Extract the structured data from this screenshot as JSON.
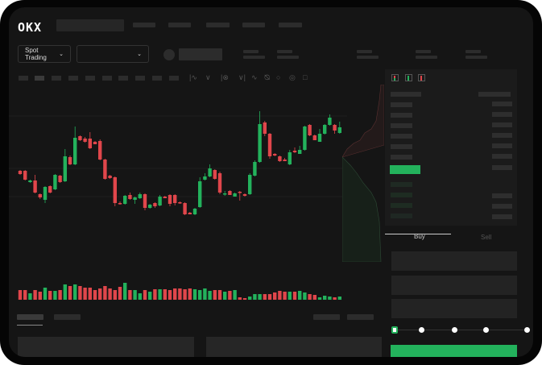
{
  "header": {
    "logo": "OKX"
  },
  "toolbar": {
    "market_select": "Spot Trading",
    "pair_select": ""
  },
  "order_entry": {
    "buy_tab": "Buy",
    "sell_tab": "Sell",
    "leverage_steps": 5,
    "leverage_selected": 0
  },
  "colors": {
    "up": "#23b25c",
    "down": "#e0464b",
    "background": "#151515",
    "panel": "#1b1b1b"
  },
  "icons": [
    "chevron-down-icon",
    "indicator-icon",
    "draw-line-icon",
    "ruler-icon",
    "camera-icon",
    "settings-icon",
    "fullscreen-icon",
    "orderbook-both-icon",
    "orderbook-bids-icon",
    "orderbook-asks-icon"
  ],
  "chart_data": {
    "type": "candlestick",
    "ohlc": [
      [
        67,
        68,
        62,
        63
      ],
      [
        67,
        68,
        55,
        56
      ],
      [
        53,
        56,
        52,
        55
      ],
      [
        55,
        62,
        39,
        40
      ],
      [
        38,
        39,
        32,
        34
      ],
      [
        31,
        48,
        27,
        47
      ],
      [
        48,
        49,
        39,
        40
      ],
      [
        44,
        63,
        43,
        62
      ],
      [
        61,
        62,
        52,
        53
      ],
      [
        54,
        94,
        53,
        85
      ],
      [
        84,
        86,
        74,
        75
      ],
      [
        75,
        122,
        74,
        108
      ],
      [
        110,
        111,
        104,
        105
      ],
      [
        107,
        109,
        102,
        103
      ],
      [
        107,
        115,
        94,
        95
      ],
      [
        103,
        104,
        100,
        100
      ],
      [
        104,
        106,
        80,
        81
      ],
      [
        81,
        82,
        56,
        57
      ],
      [
        61,
        62,
        57,
        58
      ],
      [
        59,
        60,
        23,
        27
      ],
      [
        27,
        29,
        25,
        26
      ],
      [
        26,
        37,
        25,
        36
      ],
      [
        37,
        40,
        31,
        32
      ],
      [
        31,
        35,
        26,
        34
      ],
      [
        33,
        40,
        32,
        38
      ],
      [
        38,
        39,
        18,
        21
      ],
      [
        21,
        26,
        20,
        25
      ],
      [
        27,
        28,
        21,
        23
      ],
      [
        24,
        37,
        23,
        35
      ],
      [
        35,
        36,
        33,
        33
      ],
      [
        37,
        38,
        23,
        26
      ],
      [
        37,
        38,
        24,
        27
      ],
      [
        28,
        29,
        26,
        27
      ],
      [
        27,
        28,
        12,
        13
      ],
      [
        15,
        16,
        13,
        13
      ],
      [
        13,
        21,
        12,
        20
      ],
      [
        22,
        59,
        21,
        54
      ],
      [
        56,
        64,
        55,
        60
      ],
      [
        60,
        75,
        59,
        70
      ],
      [
        68,
        69,
        56,
        57
      ],
      [
        64,
        66,
        38,
        40
      ],
      [
        38,
        42,
        36,
        39
      ],
      [
        42,
        43,
        37,
        37
      ],
      [
        35,
        40,
        35,
        39
      ],
      [
        41,
        42,
        30,
        40
      ],
      [
        38,
        39,
        35,
        36
      ],
      [
        38,
        64,
        37,
        62
      ],
      [
        61,
        80,
        60,
        78
      ],
      [
        78,
        141,
        77,
        125
      ],
      [
        127,
        129,
        110,
        113
      ],
      [
        113,
        114,
        82,
        85
      ],
      [
        88,
        89,
        85,
        86
      ],
      [
        85,
        86,
        78,
        79
      ],
      [
        81,
        83,
        79,
        79
      ],
      [
        75,
        93,
        74,
        90
      ],
      [
        92,
        96,
        89,
        90
      ],
      [
        88,
        98,
        88,
        93
      ],
      [
        93,
        123,
        92,
        122
      ],
      [
        124,
        125,
        110,
        111
      ],
      [
        111,
        112,
        105,
        105
      ],
      [
        103,
        119,
        103,
        113
      ],
      [
        113,
        125,
        112,
        124
      ],
      [
        124,
        137,
        123,
        133
      ],
      [
        124,
        125,
        113,
        117
      ],
      [
        114,
        128,
        113,
        121
      ]
    ],
    "volume": [
      12,
      12,
      8,
      12,
      10,
      15,
      11,
      11,
      12,
      19,
      17,
      19,
      17,
      15,
      15,
      12,
      14,
      17,
      14,
      12,
      16,
      21,
      12,
      12,
      8,
      12,
      10,
      13,
      13,
      13,
      12,
      14,
      14,
      13,
      14,
      13,
      12,
      14,
      11,
      12,
      12,
      10,
      11,
      12,
      3,
      2,
      4,
      7,
      7,
      7,
      7,
      9,
      11,
      10,
      10,
      10,
      11,
      9,
      7,
      6,
      3,
      5,
      4,
      3,
      4
    ]
  }
}
